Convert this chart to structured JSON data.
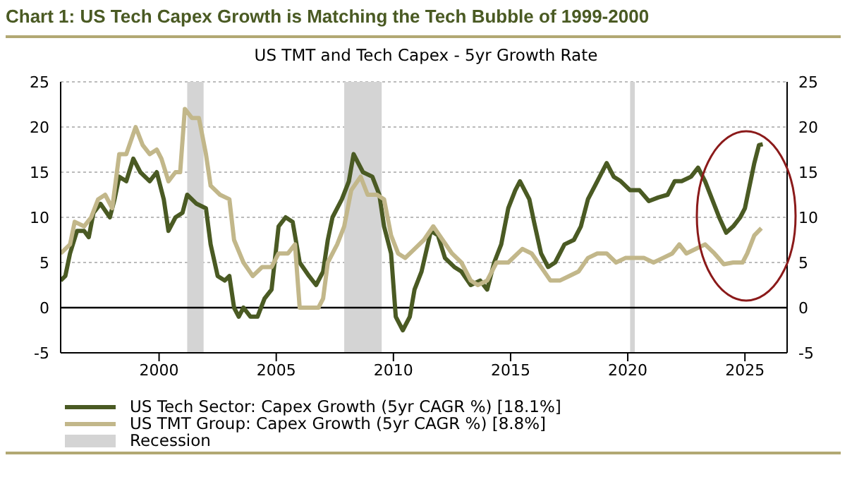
{
  "chart_data": {
    "type": "line",
    "title": "Chart 1: US Tech Capex Growth is Matching the Tech Bubble of 1999-2000",
    "subtitle": "US TMT and Tech Capex - 5yr Growth Rate",
    "series": [
      {
        "name": "US Tech Sector: Capex Growth (5yr CAGR %) [18.1%]",
        "color": "#4a5a23",
        "x": [
          1995.8,
          1996.0,
          1996.2,
          1996.5,
          1996.8,
          1997.0,
          1997.2,
          1997.5,
          1997.9,
          1998.1,
          1998.3,
          1998.6,
          1998.9,
          1999.2,
          1999.6,
          1999.9,
          2000.2,
          2000.4,
          2000.7,
          2001.0,
          2001.2,
          2001.6,
          2002.0,
          2002.2,
          2002.5,
          2002.8,
          2003.0,
          2003.2,
          2003.4,
          2003.6,
          2003.9,
          2004.2,
          2004.5,
          2004.8,
          2005.1,
          2005.4,
          2005.7,
          2006.0,
          2006.4,
          2006.7,
          2007.0,
          2007.2,
          2007.4,
          2007.8,
          2008.1,
          2008.3,
          2008.7,
          2009.1,
          2009.4,
          2009.6,
          2009.9,
          2010.1,
          2010.4,
          2010.7,
          2010.9,
          2011.2,
          2011.6,
          2011.9,
          2012.2,
          2012.6,
          2012.9,
          2013.3,
          2013.7,
          2014.0,
          2014.3,
          2014.6,
          2014.9,
          2015.2,
          2015.4,
          2015.8,
          2016.0,
          2016.3,
          2016.6,
          2016.9,
          2017.3,
          2017.7,
          2018.0,
          2018.3,
          2018.7,
          2019.1,
          2019.4,
          2019.7,
          2020.1,
          2020.5,
          2020.9,
          2021.3,
          2021.7,
          2022.0,
          2022.3,
          2022.7,
          2023.0,
          2023.3,
          2023.6,
          2023.9,
          2024.2,
          2024.5,
          2024.8,
          2025.0,
          2025.2,
          2025.4,
          2025.6,
          2025.76
        ],
        "values": [
          3,
          3.5,
          6,
          8.5,
          8.5,
          7.8,
          10.5,
          11.5,
          10,
          12,
          14.5,
          14,
          16.5,
          15,
          14,
          15,
          12,
          8.5,
          10,
          10.5,
          12.5,
          11.5,
          11,
          7,
          3.5,
          3,
          3.5,
          0,
          -1,
          0,
          -1,
          -1,
          1,
          2,
          9,
          10,
          9.5,
          5,
          3.5,
          2.5,
          4,
          7.5,
          10,
          12,
          14,
          17,
          15,
          14.5,
          12.5,
          9,
          6,
          -1,
          -2.5,
          -1,
          2,
          4,
          8.5,
          8,
          5.5,
          4.5,
          4,
          2.5,
          3,
          2,
          5,
          7,
          11,
          13,
          14,
          12,
          9.5,
          6,
          4.5,
          5,
          7,
          7.5,
          9,
          12,
          14,
          16,
          14.5,
          14,
          13,
          13,
          11.8,
          12.2,
          12.5,
          14,
          14,
          14.5,
          15.5,
          14,
          12,
          10,
          8.3,
          9,
          10,
          11,
          13.5,
          16,
          18,
          18.1
        ]
      },
      {
        "name": "US TMT Group: Capex Growth (5yr CAGR %) [8.8%]",
        "color": "#c2b78a",
        "x": [
          1995.8,
          1996.2,
          1996.4,
          1996.8,
          1997.1,
          1997.4,
          1997.7,
          1998.0,
          1998.3,
          1998.6,
          1999.0,
          1999.3,
          1999.6,
          1999.9,
          2000.1,
          2000.4,
          2000.7,
          2000.9,
          2001.1,
          2001.4,
          2001.7,
          2002.0,
          2002.2,
          2002.6,
          2003.0,
          2003.2,
          2003.6,
          2004.0,
          2004.4,
          2004.8,
          2005.1,
          2005.5,
          2005.8,
          2006.0,
          2006.4,
          2006.8,
          2007.0,
          2007.2,
          2007.6,
          2007.9,
          2008.2,
          2008.6,
          2008.9,
          2009.3,
          2009.6,
          2009.9,
          2010.2,
          2010.5,
          2010.9,
          2011.3,
          2011.7,
          2012.1,
          2012.5,
          2012.9,
          2013.3,
          2013.6,
          2014.0,
          2014.4,
          2014.9,
          2015.5,
          2015.9,
          2016.3,
          2016.7,
          2017.1,
          2017.5,
          2017.9,
          2018.3,
          2018.7,
          2019.1,
          2019.5,
          2019.9,
          2020.3,
          2020.7,
          2021.1,
          2021.5,
          2021.9,
          2022.2,
          2022.5,
          2022.9,
          2023.3,
          2023.7,
          2024.1,
          2024.5,
          2024.9,
          2025.1,
          2025.4,
          2025.7
        ],
        "values": [
          6,
          7,
          9.5,
          9,
          10,
          12,
          12.5,
          11,
          17,
          17,
          20,
          18,
          17,
          17.5,
          16.5,
          14,
          15,
          15,
          22,
          21,
          21,
          17,
          13.5,
          12.5,
          12,
          7.5,
          5,
          3.5,
          4.5,
          4.5,
          6,
          6,
          7,
          0,
          0,
          0,
          1,
          5,
          7,
          9,
          13,
          14.5,
          12.5,
          12.5,
          12,
          8,
          6,
          5.5,
          6.5,
          7.5,
          9,
          7.5,
          6,
          5,
          3,
          2.5,
          3,
          5,
          5,
          6.5,
          6,
          4.5,
          3,
          3,
          3.5,
          4,
          5.5,
          6,
          6,
          5,
          5.5,
          5.5,
          5.5,
          5,
          5.5,
          6,
          7,
          6,
          6.5,
          7,
          6,
          4.8,
          5,
          5,
          6,
          8,
          8.8
        ]
      }
    ],
    "xlim": [
      1995.8,
      2026.8
    ],
    "xticks": [
      2000,
      2005,
      2010,
      2015,
      2020,
      2025
    ],
    "ylim": [
      -5,
      25
    ],
    "yticks": [
      -5,
      0,
      5,
      10,
      15,
      20,
      25
    ],
    "y2lim": [
      -5,
      25
    ],
    "y2ticks": [
      -5,
      0,
      5,
      10,
      15,
      20,
      25
    ],
    "bands": [
      {
        "axis": "x",
        "from": 2001.2,
        "to": 2001.9,
        "label": "Recession",
        "color": "#d4d4d4"
      },
      {
        "axis": "x",
        "from": 2007.9,
        "to": 2009.5,
        "color": "#d4d4d4"
      },
      {
        "axis": "x",
        "from": 2020.1,
        "to": 2020.3,
        "color": "#d4d4d4"
      }
    ],
    "ref_lines": [
      {
        "axis": "y",
        "value": 0,
        "color": "#000000"
      }
    ],
    "grid": "y",
    "legend": "bottom left",
    "marker": "none",
    "line_style": "solid"
  }
}
